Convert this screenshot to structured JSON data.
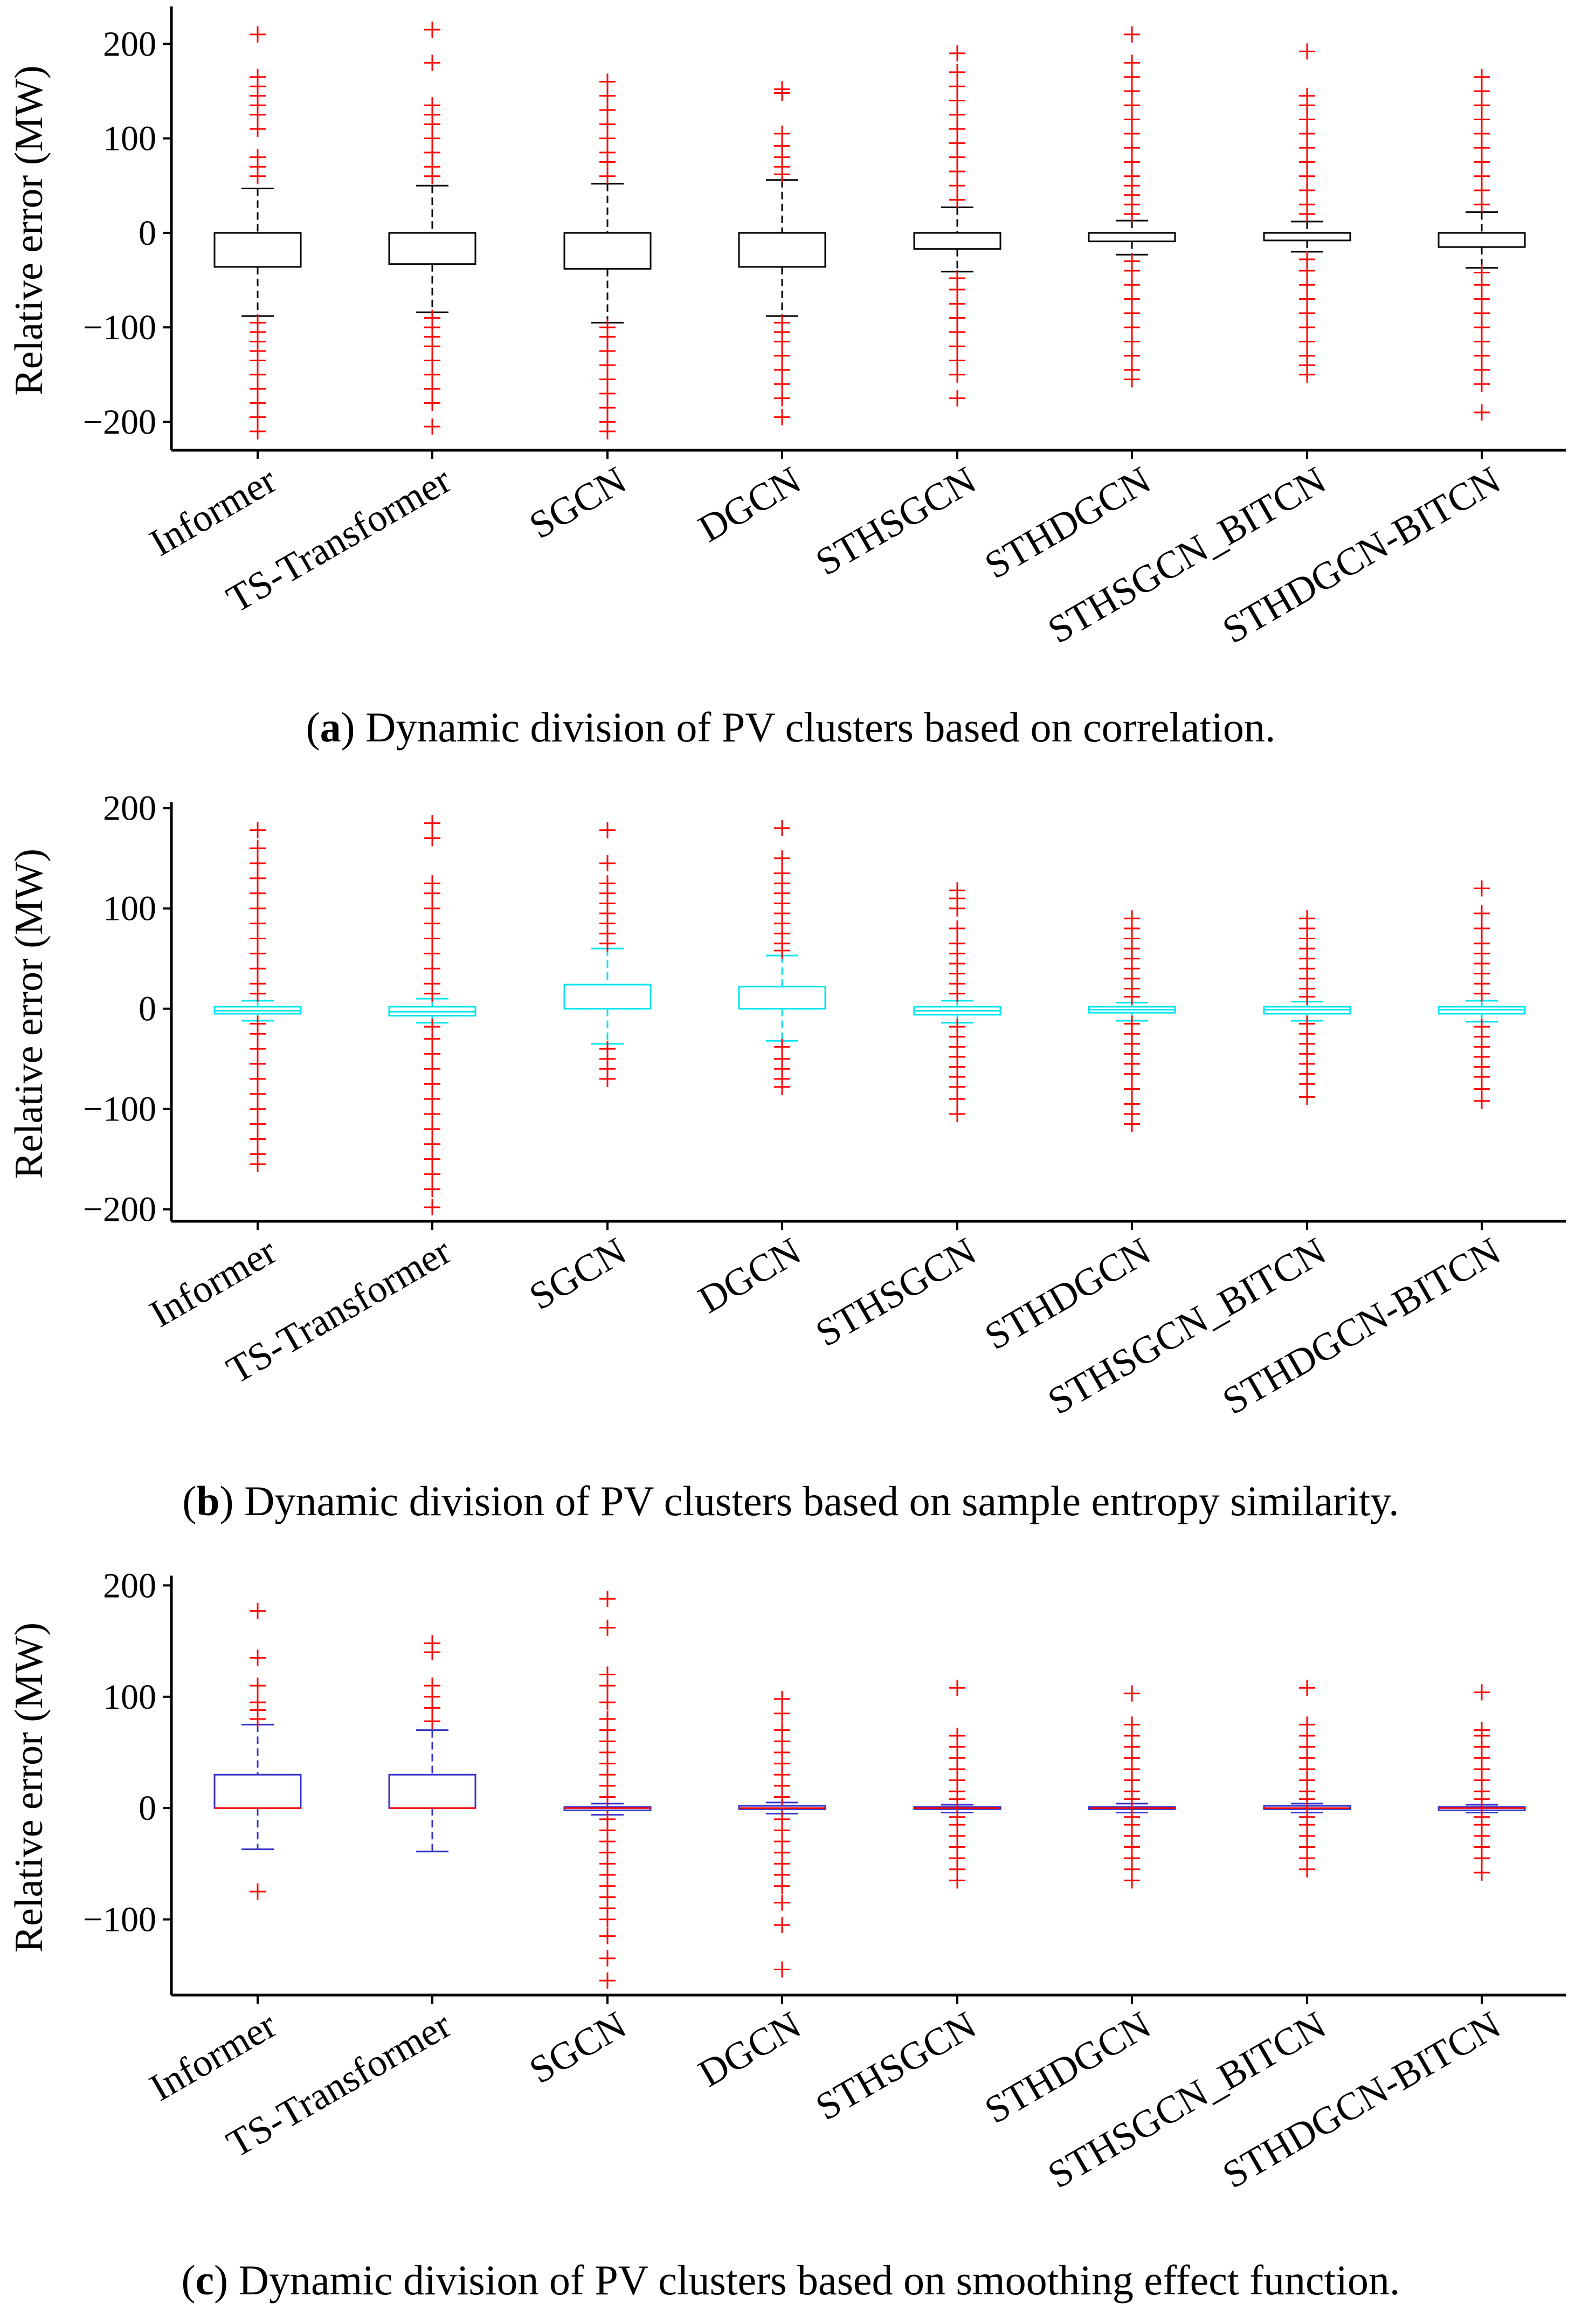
{
  "figure": {
    "panels": [
      {
        "caption_letter": "a",
        "caption_text": " Dynamic division of PV clusters based on correlation.",
        "box_color": "#000000",
        "median_color": "#000000",
        "outlier_color": "#ff0000"
      },
      {
        "caption_letter": "b",
        "caption_text": " Dynamic division of PV clusters based on sample entropy similarity.",
        "box_color": "#00e5ee",
        "median_color": "#00e5ee",
        "outlier_color": "#ff0000"
      },
      {
        "caption_letter": "c",
        "caption_text": " Dynamic division of PV clusters based on smoothing effect function.",
        "box_color": "#3333cc",
        "median_color": "#ff0000",
        "outlier_color": "#ff0000"
      }
    ]
  },
  "chart_data": [
    {
      "type": "box",
      "title": "",
      "xlabel": "",
      "ylabel": "Relative error (MW)",
      "ylim": [
        -230,
        235
      ],
      "yticks": [
        200,
        100,
        0,
        -100,
        -200
      ],
      "ytick_labels": [
        "200",
        "100",
        "0",
        "−100",
        "−200"
      ],
      "categories": [
        "Informer",
        "TS-Transformer",
        "SGCN",
        "DGCN",
        "STHSGCN",
        "STHDGCN",
        "STHSGCN_BITCN",
        "STHDGCN-BITCN"
      ],
      "series": [
        {
          "name": "Informer",
          "whisker_low": -88,
          "q1": -36,
          "median": 0,
          "q3": 0,
          "whisker_high": 47,
          "outlier_high": [
            60,
            70,
            80,
            110,
            125,
            135,
            145,
            155,
            165,
            210
          ],
          "outlier_low": [
            -95,
            -105,
            -115,
            -125,
            -135,
            -150,
            -165,
            -180,
            -195,
            -210
          ]
        },
        {
          "name": "TS-Transformer",
          "whisker_low": -84,
          "q1": -33,
          "median": 0,
          "q3": 0,
          "whisker_high": 50,
          "outlier_high": [
            60,
            70,
            85,
            100,
            115,
            125,
            135,
            180,
            215
          ],
          "outlier_low": [
            -90,
            -100,
            -110,
            -120,
            -135,
            -150,
            -165,
            -180,
            -205
          ]
        },
        {
          "name": "SGCN",
          "whisker_low": -95,
          "q1": -38,
          "median": 0,
          "q3": 0,
          "whisker_high": 52,
          "outlier_high": [
            60,
            75,
            85,
            100,
            115,
            130,
            145,
            160
          ],
          "outlier_low": [
            -100,
            -110,
            -125,
            -140,
            -155,
            -170,
            -185,
            -200,
            -210
          ]
        },
        {
          "name": "DGCN",
          "whisker_low": -88,
          "q1": -36,
          "median": 0,
          "q3": 0,
          "whisker_high": 56,
          "outlier_high": [
            62,
            70,
            80,
            92,
            105,
            148,
            152
          ],
          "outlier_low": [
            -95,
            -105,
            -115,
            -130,
            -145,
            -160,
            -175,
            -195
          ]
        },
        {
          "name": "STHSGCN",
          "whisker_low": -41,
          "q1": -17,
          "median": 0,
          "q3": 0,
          "whisker_high": 27,
          "outlier_high": [
            35,
            50,
            65,
            80,
            95,
            110,
            125,
            140,
            155,
            170,
            190
          ],
          "outlier_low": [
            -48,
            -60,
            -75,
            -90,
            -105,
            -120,
            -135,
            -150,
            -175
          ]
        },
        {
          "name": "STHDGCN",
          "whisker_low": -23,
          "q1": -9,
          "median": 0,
          "q3": 0,
          "whisker_high": 13,
          "outlier_high": [
            20,
            30,
            40,
            50,
            60,
            75,
            90,
            105,
            120,
            135,
            150,
            165,
            180,
            210
          ],
          "outlier_low": [
            -30,
            -40,
            -55,
            -70,
            -85,
            -100,
            -115,
            -130,
            -145,
            -155
          ]
        },
        {
          "name": "STHSGCN_BITCN",
          "whisker_low": -20,
          "q1": -8,
          "median": 0,
          "q3": 0,
          "whisker_high": 12,
          "outlier_high": [
            20,
            30,
            45,
            60,
            75,
            90,
            105,
            120,
            135,
            145,
            192
          ],
          "outlier_low": [
            -28,
            -40,
            -55,
            -70,
            -85,
            -100,
            -115,
            -130,
            -140,
            -150
          ]
        },
        {
          "name": "STHDGCN-BITCN",
          "whisker_low": -37,
          "q1": -15,
          "median": 0,
          "q3": 0,
          "whisker_high": 22,
          "outlier_high": [
            30,
            45,
            60,
            75,
            90,
            105,
            120,
            135,
            150,
            165
          ],
          "outlier_low": [
            -42,
            -55,
            -70,
            -85,
            -100,
            -115,
            -130,
            -145,
            -160,
            -190
          ]
        }
      ]
    },
    {
      "type": "box",
      "title": "",
      "xlabel": "",
      "ylabel": "Relative error (MW)",
      "ylim": [
        -212,
        202
      ],
      "yticks": [
        200,
        100,
        0,
        -100,
        -200
      ],
      "ytick_labels": [
        "200",
        "100",
        "0",
        "−100",
        "−200"
      ],
      "categories": [
        "Informer",
        "TS-Transformer",
        "SGCN",
        "DGCN",
        "STHSGCN",
        "STHDGCN",
        "STHSGCN_BITCN",
        "STHDGCN-BITCN"
      ],
      "series": [
        {
          "name": "Informer",
          "whisker_low": -12,
          "q1": -5,
          "median": -2,
          "q3": 2,
          "whisker_high": 8,
          "outlier_high": [
            15,
            25,
            40,
            55,
            70,
            85,
            100,
            115,
            130,
            145,
            160,
            178
          ],
          "outlier_low": [
            -15,
            -25,
            -40,
            -55,
            -70,
            -85,
            -100,
            -115,
            -130,
            -145,
            -155
          ]
        },
        {
          "name": "TS-Transformer",
          "whisker_low": -14,
          "q1": -7,
          "median": -3,
          "q3": 2,
          "whisker_high": 10,
          "outlier_high": [
            15,
            25,
            40,
            55,
            70,
            85,
            100,
            115,
            125,
            170,
            185
          ],
          "outlier_low": [
            -18,
            -30,
            -45,
            -60,
            -75,
            -90,
            -105,
            -120,
            -135,
            -150,
            -165,
            -180,
            -198
          ]
        },
        {
          "name": "SGCN",
          "whisker_low": -35,
          "q1": 0,
          "median": 0,
          "q3": 24,
          "whisker_high": 60,
          "outlier_high": [
            65,
            75,
            85,
            95,
            105,
            115,
            125,
            145,
            178
          ],
          "outlier_low": [
            -40,
            -50,
            -60,
            -70
          ]
        },
        {
          "name": "DGCN",
          "whisker_low": -32,
          "q1": 0,
          "median": 0,
          "q3": 22,
          "whisker_high": 53,
          "outlier_high": [
            58,
            65,
            75,
            85,
            95,
            105,
            115,
            125,
            135,
            150,
            180
          ],
          "outlier_low": [
            -38,
            -50,
            -60,
            -70,
            -78
          ]
        },
        {
          "name": "STHSGCN",
          "whisker_low": -14,
          "q1": -6,
          "median": -2,
          "q3": 2,
          "whisker_high": 8,
          "outlier_high": [
            15,
            25,
            35,
            45,
            55,
            65,
            80,
            100,
            110,
            118
          ],
          "outlier_low": [
            -18,
            -28,
            -38,
            -48,
            -58,
            -68,
            -78,
            -90,
            -105
          ]
        },
        {
          "name": "STHDGCN",
          "whisker_low": -12,
          "q1": -4,
          "median": -1,
          "q3": 2,
          "whisker_high": 6,
          "outlier_high": [
            12,
            20,
            30,
            40,
            50,
            60,
            70,
            80,
            90
          ],
          "outlier_low": [
            -15,
            -25,
            -35,
            -45,
            -55,
            -65,
            -80,
            -95,
            -105,
            -115
          ]
        },
        {
          "name": "STHSGCN_BITCN",
          "whisker_low": -12,
          "q1": -5,
          "median": -1,
          "q3": 2,
          "whisker_high": 7,
          "outlier_high": [
            12,
            20,
            30,
            40,
            50,
            60,
            70,
            80,
            90
          ],
          "outlier_low": [
            -15,
            -25,
            -35,
            -45,
            -55,
            -65,
            -75,
            -88
          ]
        },
        {
          "name": "STHDGCN-BITCN",
          "whisker_low": -13,
          "q1": -5,
          "median": -1,
          "q3": 2,
          "whisker_high": 8,
          "outlier_high": [
            15,
            25,
            35,
            45,
            55,
            65,
            80,
            95,
            120
          ],
          "outlier_low": [
            -18,
            -28,
            -38,
            -48,
            -58,
            -68,
            -80,
            -92
          ]
        }
      ]
    },
    {
      "type": "box",
      "title": "",
      "xlabel": "",
      "ylabel": "Relative error (MW)",
      "ylim": [
        -168,
        205
      ],
      "yticks": [
        200,
        100,
        0,
        -100
      ],
      "ytick_labels": [
        "200",
        "100",
        "0",
        "−100"
      ],
      "categories": [
        "Informer",
        "TS-Transformer",
        "SGCN",
        "DGCN",
        "STHSGCN",
        "STHDGCN",
        "STHSGCN_BITCN",
        "STHDGCN-BITCN"
      ],
      "series": [
        {
          "name": "Informer",
          "whisker_low": -37,
          "q1": 0,
          "median": 0,
          "q3": 30,
          "whisker_high": 75,
          "outlier_high": [
            80,
            88,
            95,
            110,
            135,
            177
          ],
          "outlier_low": [
            -75
          ]
        },
        {
          "name": "TS-Transformer",
          "whisker_low": -39,
          "q1": 0,
          "median": 0,
          "q3": 30,
          "whisker_high": 70,
          "outlier_high": [
            78,
            90,
            100,
            110,
            140,
            148
          ],
          "outlier_low": []
        },
        {
          "name": "SGCN",
          "whisker_low": -6,
          "q1": -2,
          "median": 0,
          "q3": 1,
          "whisker_high": 4,
          "outlier_high": [
            10,
            20,
            30,
            40,
            50,
            60,
            70,
            80,
            95,
            110,
            120,
            162,
            188
          ],
          "outlier_low": [
            -10,
            -20,
            -30,
            -40,
            -50,
            -60,
            -70,
            -80,
            -90,
            -100,
            -115,
            -135,
            -155
          ]
        },
        {
          "name": "DGCN",
          "whisker_low": -5,
          "q1": -1,
          "median": 0,
          "q3": 2,
          "whisker_high": 5,
          "outlier_high": [
            10,
            20,
            30,
            40,
            50,
            60,
            70,
            85,
            98
          ],
          "outlier_low": [
            -10,
            -20,
            -30,
            -40,
            -50,
            -60,
            -70,
            -85,
            -105,
            -145
          ]
        },
        {
          "name": "STHSGCN",
          "whisker_low": -4,
          "q1": -1,
          "median": 0,
          "q3": 1,
          "whisker_high": 3,
          "outlier_high": [
            8,
            15,
            25,
            35,
            45,
            55,
            65,
            108
          ],
          "outlier_low": [
            -8,
            -15,
            -25,
            -35,
            -45,
            -55,
            -65
          ]
        },
        {
          "name": "STHDGCN",
          "whisker_low": -4,
          "q1": -1,
          "median": 0,
          "q3": 1,
          "whisker_high": 4,
          "outlier_high": [
            8,
            15,
            25,
            35,
            45,
            55,
            65,
            75,
            103
          ],
          "outlier_low": [
            -8,
            -15,
            -25,
            -35,
            -45,
            -55,
            -65
          ]
        },
        {
          "name": "STHSGCN_BITCN",
          "whisker_low": -4,
          "q1": -1,
          "median": 0,
          "q3": 2,
          "whisker_high": 4,
          "outlier_high": [
            8,
            15,
            25,
            35,
            45,
            55,
            65,
            75,
            108
          ],
          "outlier_low": [
            -8,
            -15,
            -25,
            -35,
            -45,
            -55
          ]
        },
        {
          "name": "STHDGCN-BITCN",
          "whisker_low": -4,
          "q1": -2,
          "median": 0,
          "q3": 1,
          "whisker_high": 3,
          "outlier_high": [
            8,
            15,
            25,
            35,
            45,
            55,
            65,
            70,
            104
          ],
          "outlier_low": [
            -8,
            -15,
            -25,
            -35,
            -45,
            -58
          ]
        }
      ]
    }
  ]
}
